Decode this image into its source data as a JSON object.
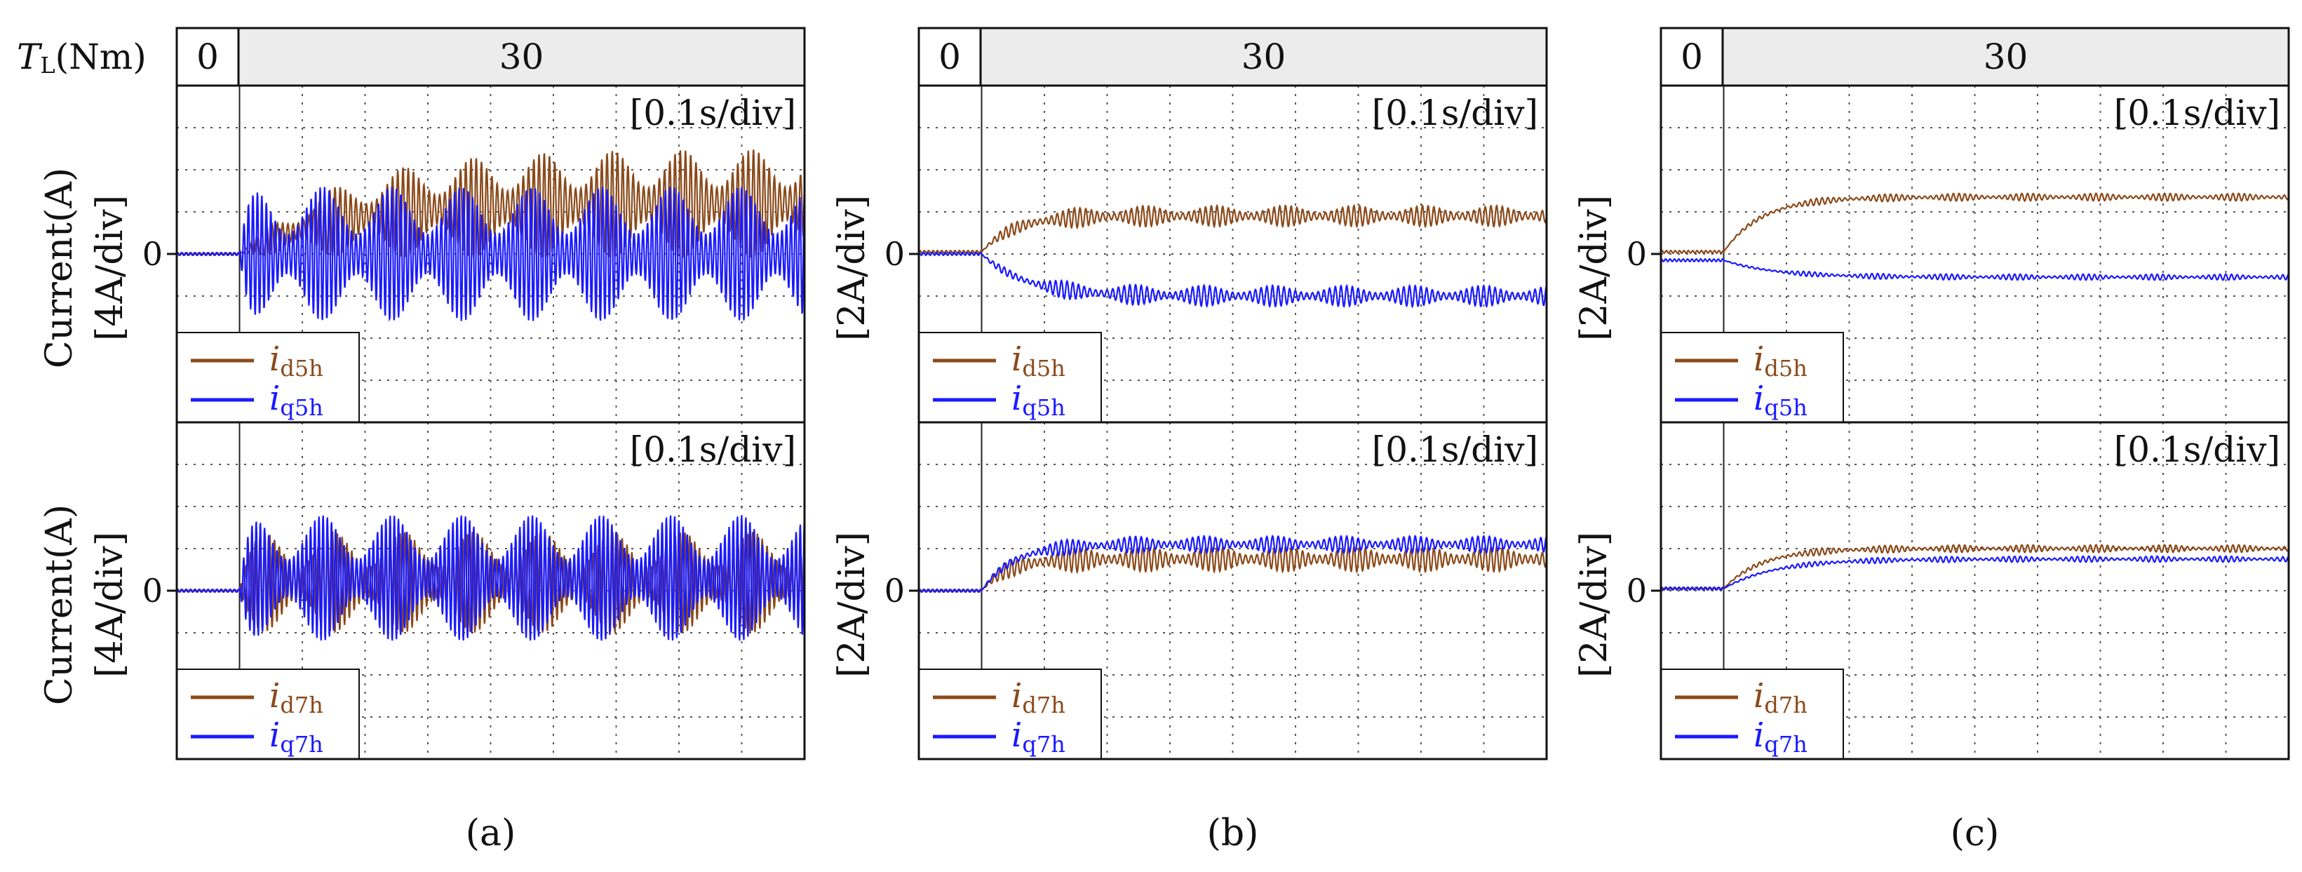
{
  "figure": {
    "torque_label_main": "T",
    "torque_label_sub": "L",
    "torque_label_unit": "(Nm)",
    "load_segments": [
      "0",
      "30"
    ],
    "y_quantity_label": "Current(A)",
    "zero_label": "0",
    "time_scale": "[0.1s/div]"
  },
  "chart_data": [
    {
      "type": "line",
      "panel": "a",
      "row": "top",
      "caption": "(a)",
      "scale_label": "[4A/div]",
      "time_scale": "[0.1s/div]",
      "ylabel": "Current(A)",
      "ylim": [
        -4,
        4
      ],
      "xlim": [
        0,
        1.0
      ],
      "step_time": 0.1,
      "grid": true,
      "legend_position": "bottom-left",
      "series": [
        {
          "name": "i",
          "subscript": "d5h",
          "color": "#8b4a1a",
          "pre_step": 0,
          "settle": 1.2,
          "ripple": 1.3,
          "tau": 0.15,
          "freq": 120
        },
        {
          "name": "i",
          "subscript": "q5h",
          "color": "#1a1aff",
          "pre_step": 0,
          "settle": 0,
          "ripple": 1.6,
          "tau": 0.01,
          "freq": 140
        }
      ]
    },
    {
      "type": "line",
      "panel": "a",
      "row": "bottom",
      "caption": "(a)",
      "scale_label": "[4A/div]",
      "time_scale": "[0.1s/div]",
      "ylabel": "Current(A)",
      "ylim": [
        -4,
        4
      ],
      "xlim": [
        0,
        1.0
      ],
      "step_time": 0.1,
      "grid": true,
      "legend_position": "bottom-left",
      "series": [
        {
          "name": "i",
          "subscript": "d7h",
          "color": "#8b4a1a",
          "pre_step": 0,
          "settle": 0.2,
          "ripple": 1.2,
          "tau": 0.01,
          "freq": 130
        },
        {
          "name": "i",
          "subscript": "q7h",
          "color": "#1a1aff",
          "pre_step": 0,
          "settle": 0.3,
          "ripple": 1.5,
          "tau": 0.01,
          "freq": 150
        }
      ]
    },
    {
      "type": "line",
      "panel": "b",
      "row": "top",
      "caption": "(b)",
      "scale_label": "[2A/div]",
      "time_scale": "[0.1s/div]",
      "ylabel": "",
      "ylim": [
        -4,
        4
      ],
      "xlim": [
        0,
        1.0
      ],
      "step_time": 0.1,
      "grid": true,
      "legend_position": "bottom-left",
      "series": [
        {
          "name": "i",
          "subscript": "d5h",
          "color": "#8b4a1a",
          "pre_step": 0.05,
          "settle": 0.9,
          "ripple": 0.25,
          "tau": 0.05,
          "freq": 110
        },
        {
          "name": "i",
          "subscript": "q5h",
          "color": "#1a1aff",
          "pre_step": 0.0,
          "settle": -1.0,
          "ripple": 0.25,
          "tau": 0.07,
          "freq": 110
        }
      ]
    },
    {
      "type": "line",
      "panel": "b",
      "row": "bottom",
      "caption": "(b)",
      "scale_label": "[2A/div]",
      "time_scale": "[0.1s/div]",
      "ylabel": "",
      "ylim": [
        -4,
        4
      ],
      "xlim": [
        0,
        1.0
      ],
      "step_time": 0.1,
      "grid": true,
      "legend_position": "bottom-left",
      "series": [
        {
          "name": "i",
          "subscript": "d7h",
          "color": "#8b4a1a",
          "pre_step": 0,
          "settle": 0.75,
          "ripple": 0.3,
          "tau": 0.04,
          "freq": 110
        },
        {
          "name": "i",
          "subscript": "q7h",
          "color": "#1a1aff",
          "pre_step": 0,
          "settle": 1.1,
          "ripple": 0.2,
          "tau": 0.05,
          "freq": 110
        }
      ]
    },
    {
      "type": "line",
      "panel": "c",
      "row": "top",
      "caption": "(c)",
      "scale_label": "[2A/div]",
      "time_scale": "[0.1s/div]",
      "ylabel": "",
      "ylim": [
        -4,
        4
      ],
      "xlim": [
        0,
        1.0
      ],
      "step_time": 0.1,
      "grid": true,
      "legend_position": "bottom-left",
      "series": [
        {
          "name": "i",
          "subscript": "d5h",
          "color": "#8b4a1a",
          "pre_step": 0.05,
          "settle": 1.35,
          "ripple": 0.09,
          "tau": 0.06,
          "freq": 110
        },
        {
          "name": "i",
          "subscript": "q5h",
          "color": "#1a1aff",
          "pre_step": -0.15,
          "settle": -0.55,
          "ripple": 0.07,
          "tau": 0.08,
          "freq": 110
        }
      ]
    },
    {
      "type": "line",
      "panel": "c",
      "row": "bottom",
      "caption": "(c)",
      "scale_label": "[2A/div]",
      "time_scale": "[0.1s/div]",
      "ylabel": "",
      "ylim": [
        -4,
        4
      ],
      "xlim": [
        0,
        1.0
      ],
      "step_time": 0.1,
      "grid": true,
      "legend_position": "bottom-left",
      "series": [
        {
          "name": "i",
          "subscript": "d7h",
          "color": "#8b4a1a",
          "pre_step": 0.05,
          "settle": 1.0,
          "ripple": 0.09,
          "tau": 0.06,
          "freq": 110
        },
        {
          "name": "i",
          "subscript": "q7h",
          "color": "#1a1aff",
          "pre_step": 0.05,
          "settle": 0.75,
          "ripple": 0.07,
          "tau": 0.08,
          "freq": 110
        }
      ]
    }
  ]
}
